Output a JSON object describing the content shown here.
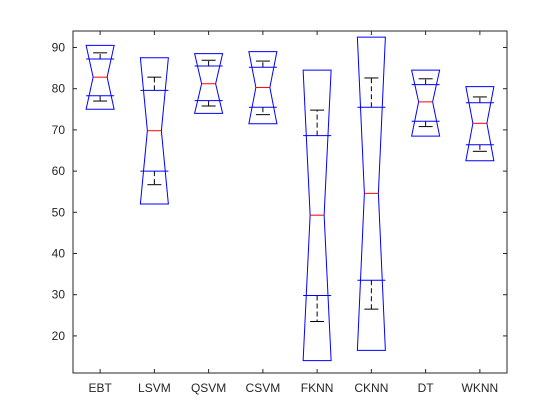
{
  "chart_data": {
    "type": "boxplot",
    "notched": true,
    "title": "",
    "xlabel": "",
    "ylabel": "",
    "ylim": [
      11,
      94
    ],
    "yticks": [
      20,
      30,
      40,
      50,
      60,
      70,
      80,
      90
    ],
    "grid": false,
    "colors": {
      "box": "#0000ff",
      "median": "#ff0000",
      "whisker": "#000000",
      "axes": "#262626"
    },
    "categories": [
      "EBT",
      "LSVM",
      "QSVM",
      "CSVM",
      "FKNN",
      "CKNN",
      "DT",
      "WKNN"
    ],
    "boxes": [
      {
        "label": "EBT",
        "whisker_low": 77.0,
        "q1": 78.3,
        "median": 82.8,
        "q3": 87.2,
        "whisker_high": 88.7,
        "notch_low": 75.0,
        "notch_high": 90.5
      },
      {
        "label": "LSVM",
        "whisker_low": 56.7,
        "q1": 60.0,
        "median": 69.8,
        "q3": 79.6,
        "whisker_high": 82.8,
        "notch_low": 52.0,
        "notch_high": 87.5
      },
      {
        "label": "QSVM",
        "whisker_low": 75.8,
        "q1": 77.1,
        "median": 81.2,
        "q3": 85.5,
        "whisker_high": 86.9,
        "notch_low": 74.0,
        "notch_high": 88.5
      },
      {
        "label": "CSVM",
        "whisker_low": 73.7,
        "q1": 75.5,
        "median": 80.3,
        "q3": 85.2,
        "whisker_high": 86.7,
        "notch_low": 71.5,
        "notch_high": 89.0
      },
      {
        "label": "FKNN",
        "whisker_low": 23.5,
        "q1": 29.8,
        "median": 49.3,
        "q3": 68.6,
        "whisker_high": 74.8,
        "notch_low": 14.0,
        "notch_high": 84.5
      },
      {
        "label": "CKNN",
        "whisker_low": 26.5,
        "q1": 33.5,
        "median": 54.6,
        "q3": 75.5,
        "whisker_high": 82.6,
        "notch_low": 16.5,
        "notch_high": 92.5
      },
      {
        "label": "DT",
        "whisker_low": 70.8,
        "q1": 72.1,
        "median": 76.8,
        "q3": 81.0,
        "whisker_high": 82.4,
        "notch_low": 68.5,
        "notch_high": 84.5
      },
      {
        "label": "WKNN",
        "whisker_low": 64.8,
        "q1": 66.4,
        "median": 71.6,
        "q3": 76.6,
        "whisker_high": 78.0,
        "notch_low": 62.5,
        "notch_high": 80.5
      }
    ]
  }
}
